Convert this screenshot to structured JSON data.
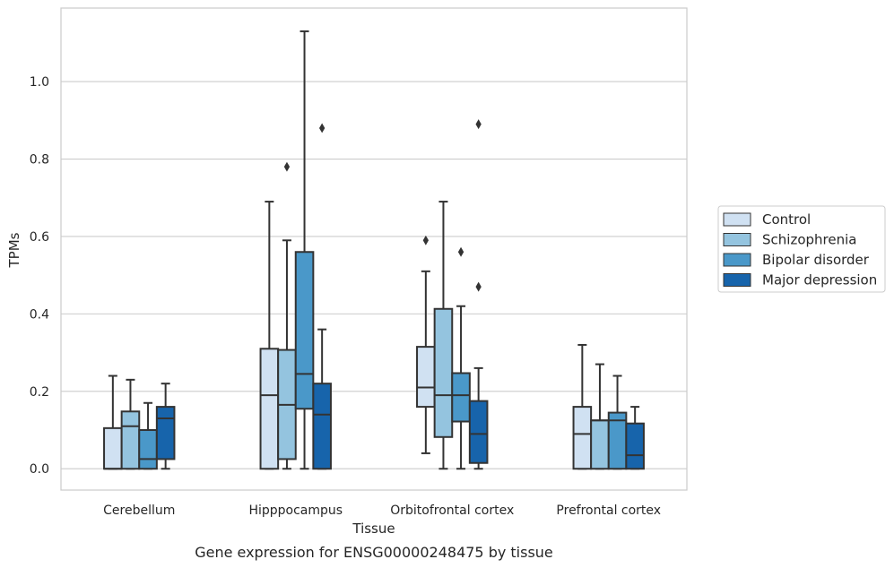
{
  "chart_data": {
    "type": "boxplot",
    "caption": "Gene expression for ENSG00000248475 by tissue",
    "xlabel": "Tissue",
    "ylabel": "TPMs",
    "ylim": [
      -0.055,
      1.19
    ],
    "yticks": [
      0.0,
      0.2,
      0.4,
      0.6,
      0.8,
      1.0
    ],
    "ytick_labels": [
      "0.0",
      "0.2",
      "0.4",
      "0.6",
      "0.8",
      "1.0"
    ],
    "grid": "horizontal",
    "legend_position": "right-outside",
    "categories": [
      "Cerebellum",
      "Hipppocampus",
      "Orbitofrontal cortex",
      "Prefrontal cortex"
    ],
    "series": [
      {
        "name": "Control",
        "color": "#d0e1f2",
        "boxes": [
          {
            "min": 0.0,
            "q1": 0.0,
            "median": 0.0,
            "q3": 0.105,
            "max": 0.24,
            "outliers": []
          },
          {
            "min": 0.0,
            "q1": 0.0,
            "median": 0.19,
            "q3": 0.31,
            "max": 0.69,
            "outliers": []
          },
          {
            "min": 0.04,
            "q1": 0.16,
            "median": 0.21,
            "q3": 0.315,
            "max": 0.51,
            "outliers": [
              0.59
            ]
          },
          {
            "min": 0.0,
            "q1": 0.0,
            "median": 0.09,
            "q3": 0.16,
            "max": 0.32,
            "outliers": []
          }
        ]
      },
      {
        "name": "Schizophrenia",
        "color": "#94c4df",
        "boxes": [
          {
            "min": 0.0,
            "q1": 0.0,
            "median": 0.11,
            "q3": 0.148,
            "max": 0.23,
            "outliers": []
          },
          {
            "min": 0.0,
            "q1": 0.025,
            "median": 0.165,
            "q3": 0.307,
            "max": 0.59,
            "outliers": [
              0.78
            ]
          },
          {
            "min": 0.0,
            "q1": 0.082,
            "median": 0.19,
            "q3": 0.413,
            "max": 0.69,
            "outliers": []
          },
          {
            "min": 0.0,
            "q1": 0.0,
            "median": 0.125,
            "q3": 0.125,
            "max": 0.27,
            "outliers": []
          }
        ]
      },
      {
        "name": "Bipolar disorder",
        "color": "#4a98c9",
        "boxes": [
          {
            "min": 0.0,
            "q1": 0.0,
            "median": 0.025,
            "q3": 0.1,
            "max": 0.17,
            "outliers": []
          },
          {
            "min": 0.0,
            "q1": 0.155,
            "median": 0.245,
            "q3": 0.56,
            "max": 1.13,
            "outliers": []
          },
          {
            "min": 0.0,
            "q1": 0.122,
            "median": 0.19,
            "q3": 0.247,
            "max": 0.42,
            "outliers": [
              0.56
            ]
          },
          {
            "min": 0.0,
            "q1": 0.0,
            "median": 0.125,
            "q3": 0.145,
            "max": 0.24,
            "outliers": []
          }
        ]
      },
      {
        "name": "Major depression",
        "color": "#1764ab",
        "boxes": [
          {
            "min": 0.0,
            "q1": 0.025,
            "median": 0.13,
            "q3": 0.16,
            "max": 0.22,
            "outliers": []
          },
          {
            "min": 0.0,
            "q1": 0.0,
            "median": 0.14,
            "q3": 0.22,
            "max": 0.36,
            "outliers": [
              0.88
            ]
          },
          {
            "min": 0.0,
            "q1": 0.015,
            "median": 0.09,
            "q3": 0.175,
            "max": 0.26,
            "outliers": [
              0.47,
              0.89
            ]
          },
          {
            "min": 0.0,
            "q1": 0.0,
            "median": 0.035,
            "q3": 0.117,
            "max": 0.16,
            "outliers": []
          }
        ]
      }
    ]
  }
}
